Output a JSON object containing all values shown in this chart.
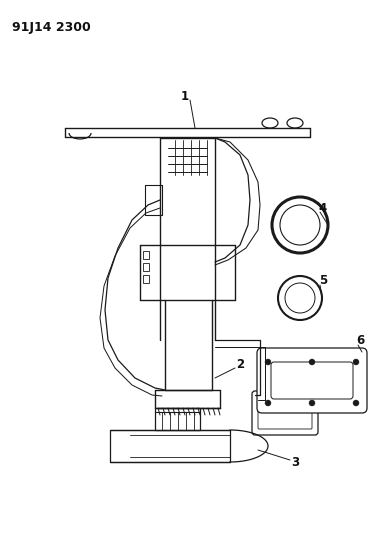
{
  "title_code": "91J14 2300",
  "bg_color": "#ffffff",
  "line_color": "#1a1a1a",
  "label_color": "#111111",
  "code_fontsize": 9,
  "label_fontsize": 8.5
}
